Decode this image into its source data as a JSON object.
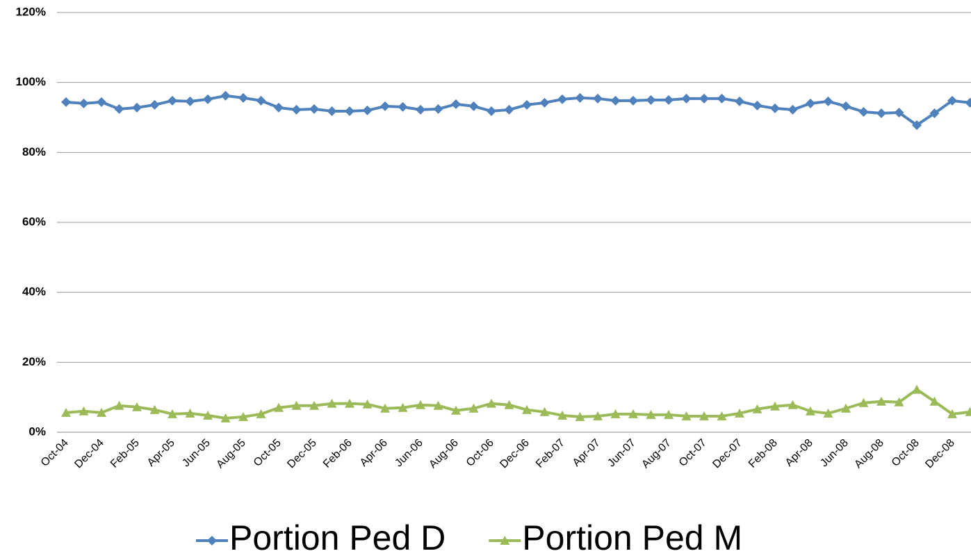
{
  "chart_data": {
    "type": "line",
    "categories": [
      "Oct-04",
      null,
      "Dec-04",
      null,
      "Feb-05",
      null,
      "Apr-05",
      null,
      "Jun-05",
      null,
      "Aug-05",
      null,
      "Oct-05",
      null,
      "Dec-05",
      null,
      "Feb-06",
      null,
      "Apr-06",
      null,
      "Jun-06",
      null,
      "Aug-06",
      null,
      "Oct-06",
      null,
      "Dec-06",
      null,
      "Feb-07",
      null,
      "Apr-07",
      null,
      "Jun-07",
      null,
      "Aug-07",
      null,
      "Oct-07",
      null,
      "Dec-07",
      null,
      "Feb-08",
      null,
      "Apr-08",
      null,
      "Jun-08",
      null,
      "Aug-08",
      null,
      "Oct-08",
      null,
      "Dec-08",
      null
    ],
    "series": [
      {
        "name": "Portion Ped D",
        "color": "#4f81bd",
        "marker": "diamond",
        "values": [
          94.4,
          94.0,
          94.4,
          92.4,
          92.8,
          93.6,
          94.8,
          94.6,
          95.2,
          96.2,
          95.6,
          94.8,
          92.8,
          92.2,
          92.4,
          91.8,
          91.8,
          92.0,
          93.2,
          93.0,
          92.2,
          92.4,
          93.8,
          93.2,
          91.8,
          92.2,
          93.6,
          94.2,
          95.2,
          95.6,
          95.4,
          94.8,
          94.8,
          95.0,
          95.0,
          95.4,
          95.4,
          95.4,
          94.6,
          93.4,
          92.6,
          92.2,
          94.0,
          94.6,
          93.2,
          91.6,
          91.2,
          91.4,
          87.8,
          91.2,
          94.8,
          94.2
        ]
      },
      {
        "name": "Portion Ped M",
        "color": "#9bbb59",
        "marker": "triangle",
        "values": [
          5.6,
          6.0,
          5.6,
          7.6,
          7.2,
          6.4,
          5.2,
          5.4,
          4.8,
          4.0,
          4.4,
          5.2,
          7.0,
          7.6,
          7.6,
          8.2,
          8.2,
          8.0,
          6.8,
          7.0,
          7.8,
          7.6,
          6.2,
          6.8,
          8.2,
          7.8,
          6.4,
          5.8,
          4.8,
          4.4,
          4.6,
          5.2,
          5.2,
          5.0,
          5.0,
          4.6,
          4.6,
          4.6,
          5.4,
          6.6,
          7.4,
          7.8,
          6.0,
          5.4,
          6.8,
          8.4,
          8.8,
          8.6,
          12.2,
          8.8,
          5.2,
          5.8
        ]
      }
    ],
    "ylim": [
      0,
      120
    ],
    "yticks": [
      {
        "value": 0,
        "label": "0%"
      },
      {
        "value": 20,
        "label": "20%"
      },
      {
        "value": 40,
        "label": "40%"
      },
      {
        "value": 60,
        "label": "60%"
      },
      {
        "value": 80,
        "label": "80%"
      },
      {
        "value": 100,
        "label": "100%"
      },
      {
        "value": 120,
        "label": "120%"
      }
    ],
    "grid": true,
    "legend": "bottom"
  }
}
